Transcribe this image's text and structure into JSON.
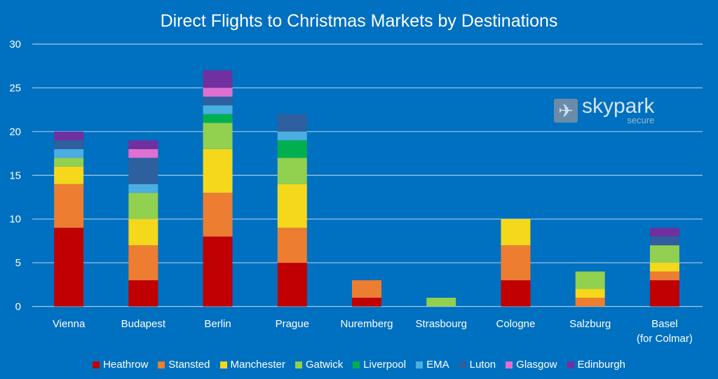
{
  "chart_data": {
    "type": "bar",
    "stacked": true,
    "title": "Direct Flights to Christmas Markets by Destinations",
    "xlabel": "",
    "ylabel": "",
    "ylim": [
      0,
      30
    ],
    "yticks": [
      0,
      5,
      10,
      15,
      20,
      25,
      30
    ],
    "grid": true,
    "legend_position": "bottom",
    "categories": [
      "Vienna",
      "Budapest",
      "Berlin",
      "Prague",
      "Nuremberg",
      "Strasbourg",
      "Cologne",
      "Salzburg",
      "Basel (for Colmar)"
    ],
    "series": [
      {
        "name": "Heathrow",
        "color": "#c00000",
        "values": [
          9,
          3,
          8,
          5,
          1,
          0,
          3,
          0,
          3
        ]
      },
      {
        "name": "Stansted",
        "color": "#ed7d31",
        "values": [
          5,
          4,
          5,
          4,
          2,
          0,
          4,
          1,
          1
        ]
      },
      {
        "name": "Manchester",
        "color": "#f5d81c",
        "values": [
          2,
          3,
          5,
          5,
          0,
          0,
          3,
          1,
          1
        ]
      },
      {
        "name": "Gatwick",
        "color": "#92d050",
        "values": [
          1,
          3,
          3,
          3,
          0,
          1,
          0,
          2,
          2
        ]
      },
      {
        "name": "Liverpool",
        "color": "#00b050",
        "values": [
          0,
          0,
          1,
          2,
          0,
          0,
          0,
          0,
          0
        ]
      },
      {
        "name": "EMA",
        "color": "#4aaee0",
        "values": [
          1,
          1,
          1,
          1,
          0,
          0,
          0,
          0,
          0
        ]
      },
      {
        "name": "Luton",
        "color": "#2e5f9e",
        "values": [
          1,
          3,
          1,
          2,
          0,
          0,
          0,
          0,
          1
        ]
      },
      {
        "name": "Glasgow",
        "color": "#e070d0",
        "values": [
          0,
          1,
          1,
          0,
          0,
          0,
          0,
          0,
          0
        ]
      },
      {
        "name": "Edinburgh",
        "color": "#7030a0",
        "values": [
          1,
          1,
          2,
          0,
          0,
          0,
          0,
          0,
          1
        ]
      }
    ]
  },
  "logo": {
    "name": "skypark",
    "sub": "secure",
    "icon": "airplane-icon"
  }
}
